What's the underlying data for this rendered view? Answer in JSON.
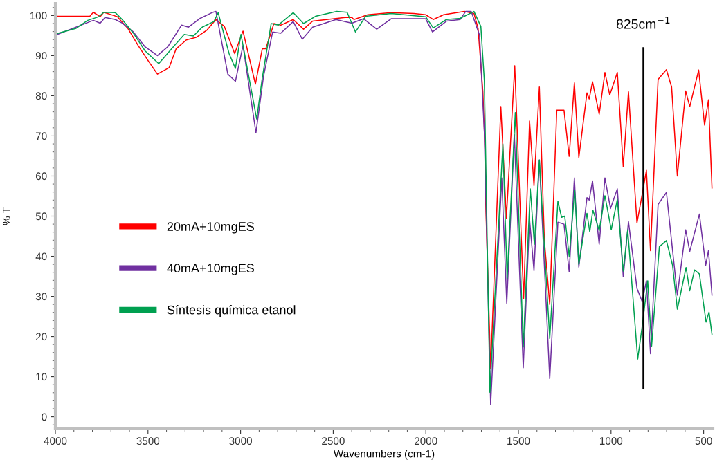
{
  "chart_data": {
    "type": "line",
    "xlabel": "Wavenumbers (cm-1)",
    "ylabel": "% T",
    "xlim": [
      4000,
      450
    ],
    "xticks": [
      4000,
      3500,
      3000,
      2500,
      2000,
      1500,
      1000,
      500
    ],
    "ylim": [
      -3,
      103
    ],
    "yticks": [
      0,
      10,
      20,
      30,
      40,
      50,
      60,
      70,
      80,
      90,
      100
    ],
    "grid": false,
    "legend": "center left",
    "marker": "none",
    "line_style": "solid",
    "ref_lines": [
      {
        "axis": "x",
        "value": 825,
        "label": "825cm$^{−1}$",
        "color": "#000000"
      }
    ],
    "series": [
      {
        "name": "20mA+10mgES",
        "color": "#ff0000",
        "x": [
          4000,
          3814,
          3795,
          3758,
          3739,
          3665,
          3609,
          3553,
          3497,
          3449,
          3386,
          3348,
          3293,
          3237,
          3181,
          3133,
          3088,
          3032,
          2987,
          2920,
          2883,
          2864,
          2820,
          2783,
          2716,
          2660,
          2611,
          2436,
          2399,
          2388,
          2313,
          2187,
          2064,
          2001,
          1960,
          1904,
          1792,
          1740,
          1718,
          1692,
          1680,
          1677,
          1650,
          1595,
          1565,
          1520,
          1472,
          1440,
          1416,
          1387,
          1360,
          1331,
          1293,
          1254,
          1226,
          1198,
          1174,
          1130,
          1118,
          1100,
          1064,
          1033,
          1007,
          966,
          934,
          906,
          860,
          839,
          809,
          787,
          746,
          701,
          673,
          642,
          597,
          575,
          527,
          495,
          474,
          455
        ],
        "values": [
          99.8,
          99.8,
          100.8,
          99.7,
          100.8,
          99.7,
          96.8,
          92.5,
          88.6,
          85.4,
          87.0,
          91.7,
          93.9,
          94.6,
          96.4,
          99.0,
          97.3,
          90.5,
          96.1,
          82.9,
          91.7,
          91.7,
          98.0,
          97.6,
          99.0,
          96.6,
          98.6,
          99.5,
          99.5,
          99.0,
          100.2,
          100.7,
          100.5,
          100.2,
          99.0,
          100.2,
          101.0,
          100.5,
          96.8,
          81.0,
          66.3,
          53.7,
          12.0,
          77.3,
          49.5,
          87.5,
          29.5,
          73.7,
          57.6,
          82.2,
          44.0,
          28.0,
          76.4,
          76.4,
          64.9,
          83.2,
          64.6,
          80.7,
          79.2,
          83.5,
          75.4,
          85.8,
          80.2,
          85.8,
          62.3,
          81.0,
          48.3,
          53.6,
          61.4,
          41.4,
          84.1,
          86.5,
          82.2,
          60.0,
          81.2,
          77.3,
          86.4,
          72.7,
          79.0,
          57.0
        ]
      },
      {
        "name": "40mA+10mgES",
        "color": "#7030a0",
        "x": [
          4000,
          3795,
          3758,
          3732,
          3676,
          3639,
          3579,
          3516,
          3449,
          3393,
          3319,
          3281,
          3218,
          3155,
          3133,
          3069,
          3028,
          2987,
          2917,
          2876,
          2827,
          2783,
          2716,
          2667,
          2611,
          2485,
          2399,
          2336,
          2265,
          2187,
          2001,
          1964,
          1889,
          1815,
          1785,
          1755,
          1710,
          1684,
          1650,
          1590,
          1563,
          1522,
          1474,
          1440,
          1416,
          1387,
          1331,
          1287,
          1254,
          1226,
          1198,
          1174,
          1130,
          1118,
          1100,
          1064,
          1033,
          1003,
          966,
          934,
          906,
          860,
          832,
          809,
          787,
          746,
          701,
          642,
          597,
          575,
          523,
          489,
          474,
          455
        ],
        "values": [
          95.1,
          98.8,
          98.1,
          99.5,
          99.0,
          98.1,
          95.9,
          92.2,
          90.0,
          92.2,
          97.6,
          97.1,
          99.3,
          100.7,
          101.0,
          85.4,
          83.6,
          92.5,
          70.8,
          84.9,
          95.9,
          95.6,
          98.5,
          94.1,
          97.1,
          99.0,
          98.1,
          99.2,
          96.6,
          99.2,
          99.2,
          95.9,
          98.6,
          99.0,
          101.0,
          101.0,
          95.1,
          70.8,
          3.0,
          59.5,
          28.3,
          70.3,
          12.2,
          49.2,
          36.4,
          64.0,
          9.5,
          48.5,
          48.0,
          36.1,
          59.5,
          37.3,
          54.6,
          54.0,
          58.8,
          43.0,
          59.5,
          51.9,
          56.8,
          34.9,
          48.6,
          32.0,
          28.7,
          33.9,
          15.7,
          52.9,
          55.9,
          30.3,
          46.6,
          41.2,
          50.5,
          37.8,
          41.4,
          30.3
        ]
      },
      {
        "name": "Síntesis química etanol",
        "color": "#00a050",
        "x": [
          4000,
          3888,
          3825,
          3765,
          3739,
          3676,
          3639,
          3579,
          3516,
          3442,
          3378,
          3304,
          3255,
          3207,
          3144,
          3121,
          3062,
          3028,
          2998,
          2913,
          2883,
          2835,
          2797,
          2716,
          2660,
          2596,
          2481,
          2425,
          2380,
          2325,
          2187,
          2001,
          1960,
          1889,
          1815,
          1740,
          1703,
          1684,
          1654,
          1584,
          1561,
          1517,
          1474,
          1436,
          1414,
          1387,
          1331,
          1287,
          1267,
          1250,
          1226,
          1196,
          1174,
          1130,
          1115,
          1098,
          1064,
          1033,
          999,
          966,
          934,
          910,
          856,
          832,
          802,
          781,
          739,
          701,
          668,
          642,
          595,
          575,
          549,
          523,
          487,
          471,
          455
        ],
        "values": [
          95.4,
          96.8,
          98.8,
          99.7,
          100.8,
          100.7,
          99.0,
          95.6,
          91.2,
          88.0,
          91.4,
          95.3,
          94.9,
          97.1,
          98.5,
          100.7,
          90.5,
          86.8,
          95.3,
          74.2,
          84.4,
          98.0,
          97.6,
          100.7,
          98.0,
          99.8,
          101.0,
          100.8,
          95.9,
          99.8,
          100.5,
          99.7,
          96.9,
          99.0,
          99.3,
          101.0,
          97.3,
          83.7,
          6.1,
          68.0,
          34.3,
          75.8,
          17.4,
          56.8,
          43.0,
          64.0,
          19.5,
          53.7,
          49.7,
          50.0,
          40.0,
          56.4,
          38.0,
          50.7,
          46.1,
          51.5,
          46.4,
          55.1,
          46.6,
          54.2,
          36.3,
          46.6,
          14.4,
          22.5,
          33.9,
          17.6,
          42.4,
          43.9,
          37.8,
          26.8,
          37.2,
          31.4,
          36.6,
          35.6,
          23.6,
          26.1,
          20.5
        ]
      }
    ]
  }
}
